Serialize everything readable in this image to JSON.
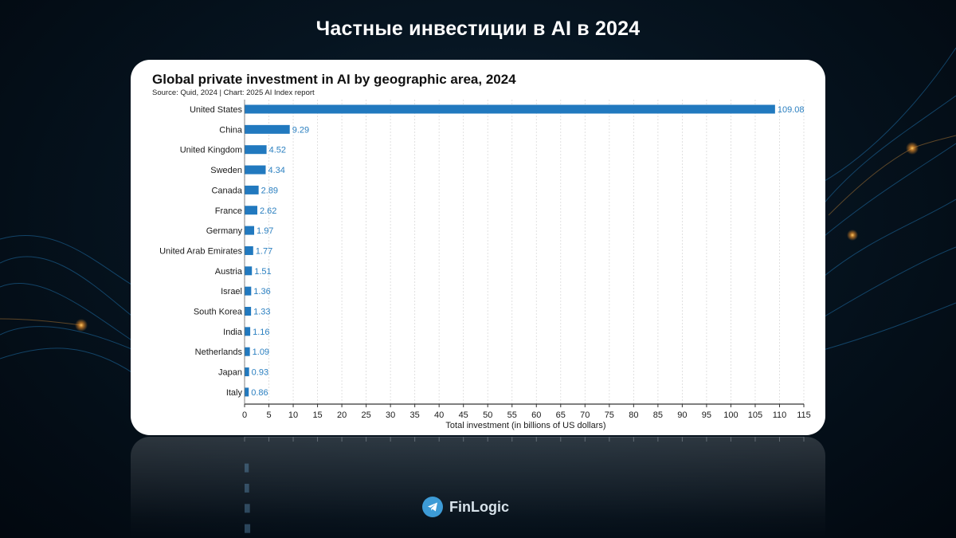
{
  "page": {
    "title": "Частные инвестиции в AI в 2024",
    "brand_name": "FinLogic",
    "brand_icon": "telegram-icon"
  },
  "colors": {
    "bar": "#2179bf",
    "value_label": "#2a7fc0",
    "background": "#061420",
    "card": "#ffffff"
  },
  "chart_data": {
    "type": "bar",
    "orientation": "horizontal",
    "title": "Global private investment in AI by geographic area, 2024",
    "subtitle": "Source: Quid, 2024 | Chart: 2025 AI Index report",
    "xlabel": "Total investment (in billions of US dollars)",
    "ylabel": "",
    "xlim": [
      0,
      115
    ],
    "xticks": [
      0,
      5,
      10,
      15,
      20,
      25,
      30,
      35,
      40,
      45,
      50,
      55,
      60,
      65,
      70,
      75,
      80,
      85,
      90,
      95,
      100,
      105,
      110,
      115
    ],
    "grid": true,
    "categories": [
      "United States",
      "China",
      "United Kingdom",
      "Sweden",
      "Canada",
      "France",
      "Germany",
      "United Arab Emirates",
      "Austria",
      "Israel",
      "South Korea",
      "India",
      "Netherlands",
      "Japan",
      "Italy"
    ],
    "values": [
      109.08,
      9.29,
      4.52,
      4.34,
      2.89,
      2.62,
      1.97,
      1.77,
      1.51,
      1.36,
      1.33,
      1.16,
      1.09,
      0.93,
      0.86
    ],
    "value_labels": [
      "109.08",
      "9.29",
      "4.52",
      "4.34",
      "2.89",
      "2.62",
      "1.97",
      "1.77",
      "1.51",
      "1.36",
      "1.33",
      "1.16",
      "1.09",
      "0.93",
      "0.86"
    ]
  }
}
